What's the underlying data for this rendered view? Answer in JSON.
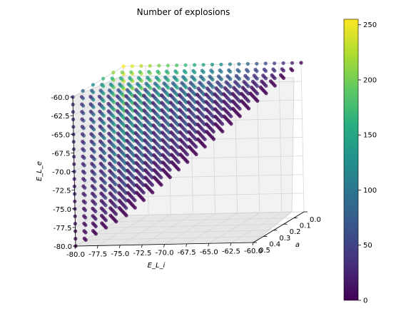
{
  "chart_data": {
    "type": "scatter",
    "title": "Number of explosions",
    "xlabel": "E_L_i",
    "ylabel": "a",
    "zlabel": "E_L_e",
    "x_ticks": [
      "-80.0",
      "-77.5",
      "-75.0",
      "-72.5",
      "-70.0",
      "-67.5",
      "-65.0",
      "-62.5",
      "-60.0"
    ],
    "y_ticks": [
      "0.0",
      "0.1",
      "0.2",
      "0.3",
      "0.4",
      "0.5"
    ],
    "z_ticks": [
      "-60.0",
      "-62.5",
      "-65.0",
      "-67.5",
      "-70.0",
      "-72.5",
      "-75.0",
      "-77.5",
      "-80.0"
    ],
    "colorbar_ticks": [
      "250",
      "200",
      "150",
      "100",
      "50",
      "0"
    ],
    "xlim": [
      -80,
      -60
    ],
    "ylim": [
      0,
      0.5
    ],
    "zlim": [
      -80,
      -60
    ],
    "colorbar_range": [
      0,
      255
    ],
    "colormap": "viridis",
    "grid": "E_L_i and E_L_e from -80 to -60 in steps of 1; a from 0 to 0.5 in steps of 0.1; points only where E_L_e >= E_L_i",
    "value_trend": "count highest (about 255) at large E_L_e with small E_L_i and small a; near 0 when E_L_e is close to E_L_i or a is large"
  }
}
